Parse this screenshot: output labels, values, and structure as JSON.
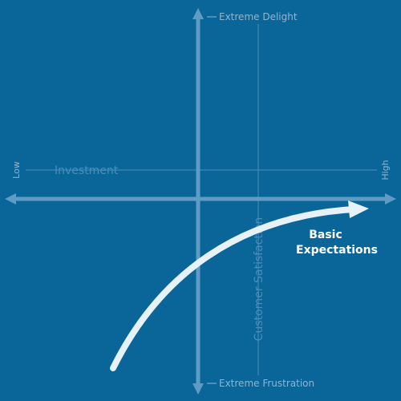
{
  "axes": {
    "top": "Extreme Delight",
    "bottom": "Extreme Frustration",
    "left": "Low",
    "right": "High",
    "x_title": "Investment",
    "y_title": "Customer Satisfaction"
  },
  "curve": {
    "label_lines": [
      "Basic",
      "Expectations"
    ]
  }
}
